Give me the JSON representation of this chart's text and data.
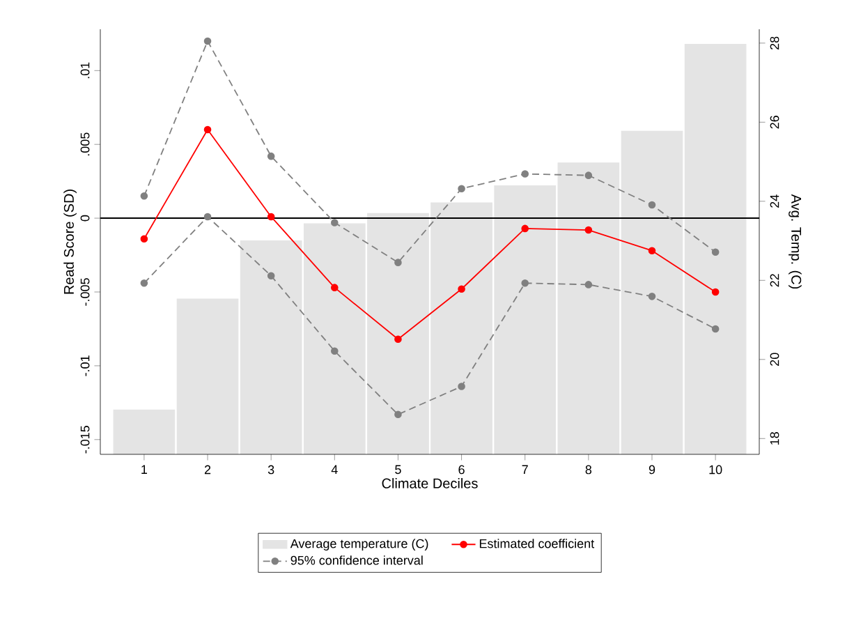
{
  "chart_data": {
    "type": "line",
    "xlabel": "Climate Deciles",
    "ylabel": "Read Score (SD)",
    "y2label": "Avg. Temp. (C)",
    "categories": [
      "1",
      "2",
      "3",
      "4",
      "5",
      "6",
      "7",
      "8",
      "9",
      "10"
    ],
    "series": [
      {
        "name": "Average temperature (C)",
        "type": "bar",
        "axis": "y2",
        "color": "#e4e4e4",
        "values": [
          18.72,
          21.53,
          23.0,
          23.43,
          23.69,
          23.96,
          24.39,
          24.97,
          25.77,
          27.97
        ]
      },
      {
        "name": "Estimated coefficient",
        "color": "#ff0000",
        "line_style": "solid",
        "values": [
          -0.0014,
          0.006,
          0.0001,
          -0.0047,
          -0.0082,
          -0.0048,
          -0.0007,
          -0.0008,
          -0.0022,
          -0.005
        ]
      },
      {
        "name": "95% confidence interval",
        "color": "#808080",
        "line_style": "dashed",
        "values": [
          0.0015,
          0.012,
          0.0042,
          -0.0003,
          -0.003,
          0.002,
          0.003,
          0.0029,
          0.0009,
          -0.0023
        ]
      },
      {
        "color": "#808080",
        "line_style": "dashed",
        "values": [
          -0.0044,
          0.0001,
          -0.0039,
          -0.009,
          -0.0133,
          -0.0114,
          -0.0044,
          -0.0045,
          -0.0053,
          -0.0075
        ]
      }
    ],
    "ylim": [
      -0.016,
      0.0128
    ],
    "yticks": [
      {
        "value": -0.015,
        "label": "-.015"
      },
      {
        "value": -0.01,
        "label": "-.01"
      },
      {
        "value": -0.005,
        "label": "-.005"
      },
      0,
      {
        "value": 0.005,
        "label": ".005"
      },
      {
        "value": 0.01,
        "label": ".01"
      }
    ],
    "y2lim": [
      17.6,
      28.35
    ],
    "y2ticks": [
      18,
      20,
      22,
      24,
      26,
      28
    ],
    "ref_lines": [
      {
        "axis": "y",
        "value": 0,
        "color": "#000000"
      }
    ],
    "marker": "circle",
    "grid": false,
    "legend": "bottom"
  }
}
